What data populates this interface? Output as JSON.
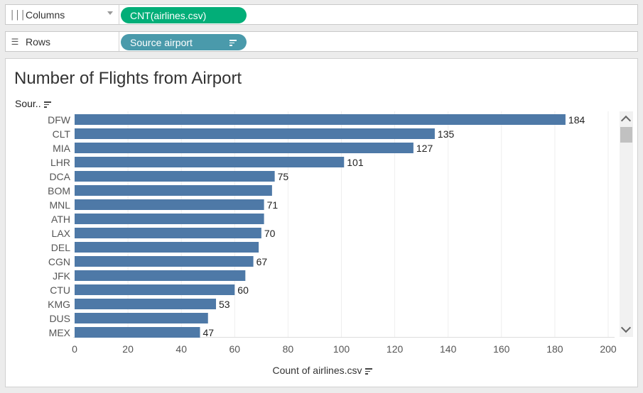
{
  "columns_shelf": {
    "label": "Columns",
    "icon": "columns-icon",
    "pill": "CNT(airlines.csv)",
    "pill_color": "#02ae78"
  },
  "rows_shelf": {
    "label": "Rows",
    "icon": "rows-icon",
    "pill": "Source airport",
    "pill_color": "#4a9aab"
  },
  "chart_data": {
    "type": "bar",
    "orientation": "horizontal",
    "title": "Number of Flights from Airport",
    "ylabel": "Sour..",
    "xlabel": "Count of airlines.csv",
    "categories": [
      "DFW",
      "CLT",
      "MIA",
      "LHR",
      "DCA",
      "BOM",
      "MNL",
      "ATH",
      "LAX",
      "DEL",
      "CGN",
      "JFK",
      "CTU",
      "KMG",
      "DUS",
      "MEX"
    ],
    "values": [
      184,
      135,
      127,
      101,
      75,
      74,
      71,
      71,
      70,
      69,
      67,
      64,
      60,
      53,
      50,
      47
    ],
    "data_labels": [
      "184",
      "135",
      "127",
      "101",
      "75",
      "",
      "71",
      "",
      "70",
      "",
      "67",
      "",
      "60",
      "53",
      "",
      "47"
    ],
    "xlim": [
      0,
      200
    ],
    "xticks": [
      0,
      20,
      40,
      60,
      80,
      100,
      120,
      140,
      160,
      180,
      200
    ],
    "bar_color": "#4e79a7",
    "grid": true
  }
}
